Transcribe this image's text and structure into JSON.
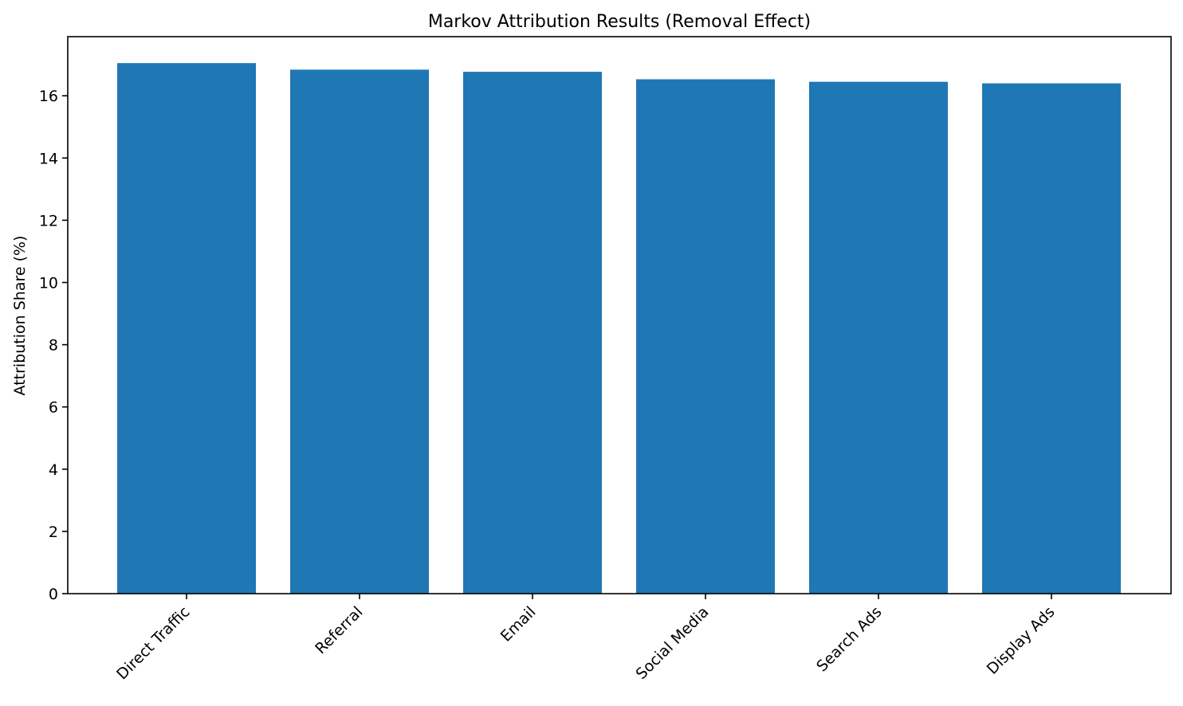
{
  "chart_data": {
    "type": "bar",
    "title": "Markov Attribution Results (Removal Effect)",
    "xlabel": "",
    "ylabel": "Attribution Share (%)",
    "categories": [
      "Direct Traffic",
      "Referral",
      "Email",
      "Social Media",
      "Search Ads",
      "Display Ads"
    ],
    "values": [
      17.05,
      16.84,
      16.77,
      16.53,
      16.45,
      16.4
    ],
    "ylim": [
      0,
      17.9
    ],
    "yticks": [
      0,
      2,
      4,
      6,
      8,
      10,
      12,
      14,
      16
    ],
    "ytick_labels": [
      "0",
      "2",
      "4",
      "6",
      "8",
      "10",
      "12",
      "14",
      "16"
    ],
    "bar_color": "#1f77b4",
    "grid": false,
    "legend": null
  }
}
